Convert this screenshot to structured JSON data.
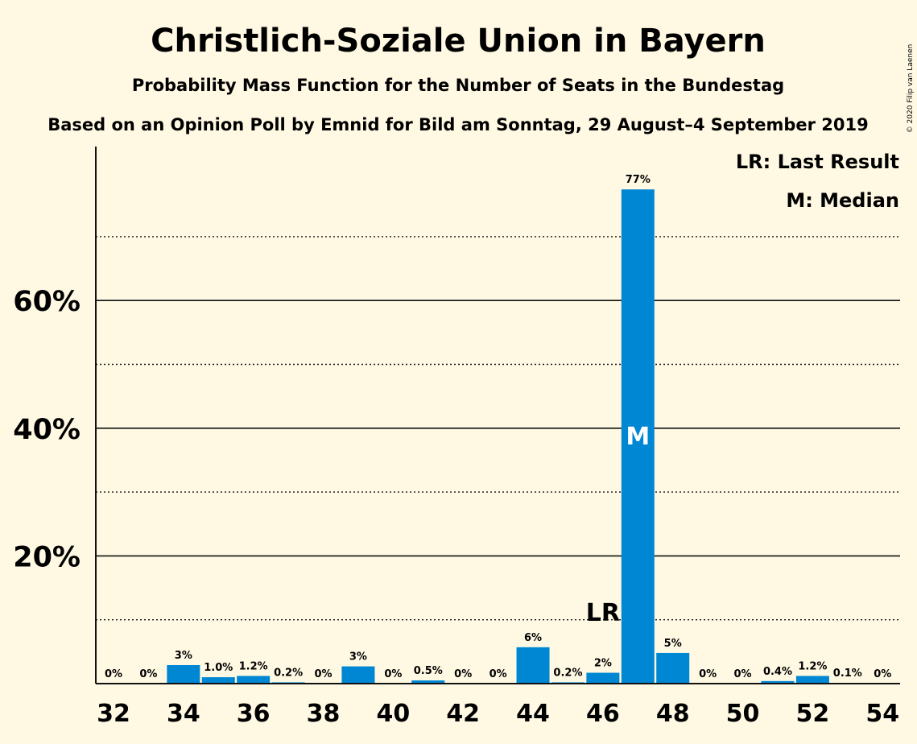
{
  "title": "Christlich-Soziale Union in Bayern",
  "subtitle": "Probability Mass Function for the Number of Seats in the Bundestag",
  "source_line": "Based on an Opinion Poll by Emnid for Bild am Sonntag, 29 August–4 September 2019",
  "copyright": "© 2020 Filip van Laenen",
  "legend": {
    "last_result": "LR: Last Result",
    "median": "M: Median"
  },
  "colors": {
    "bar": "#0087D4",
    "background": "#FFF9E3",
    "text": "#111111"
  },
  "chart_data": {
    "type": "bar",
    "x": [
      32,
      33,
      34,
      35,
      36,
      37,
      38,
      39,
      40,
      41,
      42,
      43,
      44,
      45,
      46,
      47,
      48,
      49,
      50,
      51,
      52,
      53,
      54
    ],
    "values": [
      0,
      0,
      3,
      1.0,
      1.2,
      0.2,
      0,
      3,
      0,
      0.5,
      0,
      0,
      6,
      0.2,
      2,
      77,
      5,
      0,
      0,
      0.4,
      1.2,
      0.1,
      0
    ],
    "bar_heights_percent": [
      0,
      0,
      2.9,
      1.0,
      1.2,
      0.2,
      0,
      2.7,
      0,
      0.5,
      0,
      0,
      5.7,
      0.2,
      1.7,
      77.4,
      4.8,
      0,
      0,
      0.4,
      1.2,
      0.1,
      0
    ],
    "data_labels": [
      "0%",
      "0%",
      "3%",
      "1.0%",
      "1.2%",
      "0.2%",
      "0%",
      "3%",
      "0%",
      "0.5%",
      "0%",
      "0%",
      "6%",
      "0.2%",
      "2%",
      "77%",
      "5%",
      "0%",
      "0%",
      "0.4%",
      "1.2%",
      "0.1%",
      "0%"
    ],
    "x_tick_labels": [
      "32",
      "34",
      "36",
      "38",
      "40",
      "42",
      "44",
      "46",
      "48",
      "50",
      "52",
      "54"
    ],
    "y_tick_labels": [
      "20%",
      "40%",
      "60%"
    ],
    "y_ticks": [
      20,
      40,
      60
    ],
    "y_minor_ticks": [
      10,
      30,
      50,
      70
    ],
    "ylim": [
      0,
      84
    ],
    "xlabel": "",
    "ylabel": "",
    "last_result": {
      "seat": 46,
      "label": "LR"
    },
    "median": {
      "seat": 47,
      "label": "M"
    },
    "grid": true
  }
}
